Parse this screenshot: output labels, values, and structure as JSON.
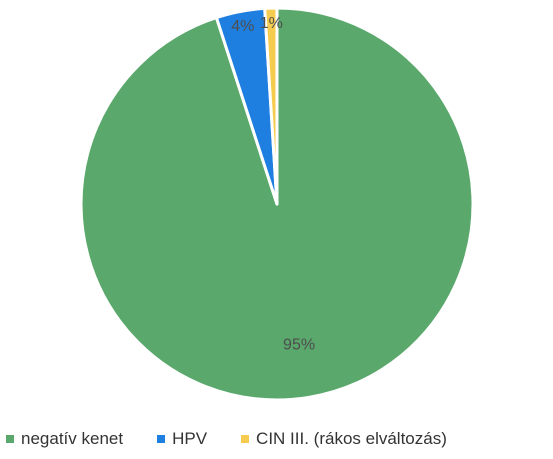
{
  "chart_data": {
    "type": "pie",
    "labels": [
      "negatív kenet",
      "HPV",
      "CIN III. (rákos elváltozás)"
    ],
    "values": [
      95,
      4,
      1
    ],
    "data_labels": [
      "95%",
      "4%",
      "1%"
    ],
    "colors": [
      "#5aa86c",
      "#1f7fe0",
      "#f5cc50"
    ],
    "legend": "bottom"
  }
}
